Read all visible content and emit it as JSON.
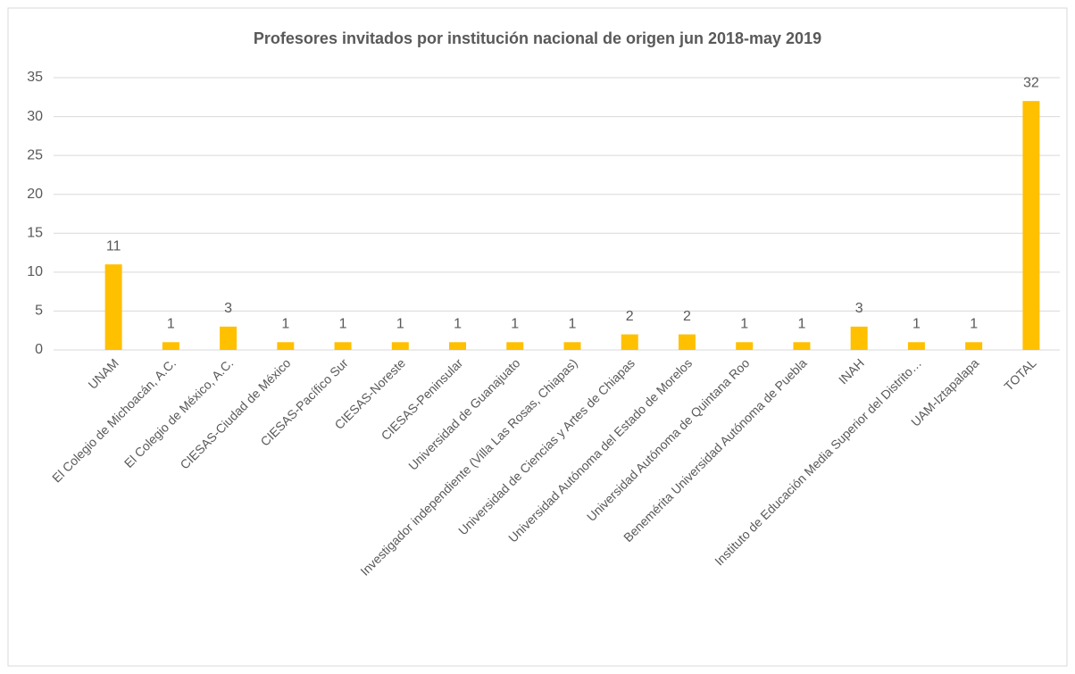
{
  "chart_data": {
    "type": "bar",
    "title": "Profesores invitados por institución nacional de origen jun 2018-may 2019",
    "categories": [
      "UNAM",
      "El Colegio de Michoacán, A.C.",
      "El Colegio de México, A.C.",
      "CIESAS-Ciudad de México",
      "CIESAS-Pacífico Sur",
      "CIESAS-Noreste",
      "CIESAS-Peninsular",
      "Universidad de Guanajuato",
      "Investigador independiente (Villa Las Rosas, Chiapas)",
      "Universidad de Ciencias y Artes de Chiapas",
      "Universidad Autónoma del Estado de Morelos",
      "Universidad Autónoma de Quintana Roo",
      "Benemérita Universidad Autónoma de Puebla",
      "INAH",
      "Instituto de Educación Media Superior del Distrito…",
      "UAM-Iztapalapa",
      "TOTAL"
    ],
    "values": [
      11,
      1,
      3,
      1,
      1,
      1,
      1,
      1,
      1,
      2,
      2,
      1,
      1,
      3,
      1,
      1,
      32
    ],
    "color": "#FFC000",
    "ylim": [
      0,
      35
    ],
    "yticks": [
      0,
      5,
      10,
      15,
      20,
      25,
      30,
      35
    ],
    "grid": true
  }
}
